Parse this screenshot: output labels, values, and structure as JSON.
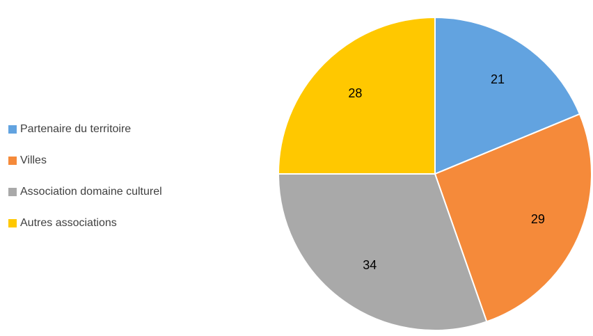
{
  "chart_data": {
    "type": "pie",
    "categories": [
      "Partenaire du territoire",
      "Villes",
      "Association domaine culturel",
      "Autres associations"
    ],
    "values": [
      21,
      29,
      34,
      28
    ],
    "colors": [
      "#62a3e0",
      "#f58a3a",
      "#a9a9a9",
      "#ffc800"
    ],
    "legend": "left"
  }
}
